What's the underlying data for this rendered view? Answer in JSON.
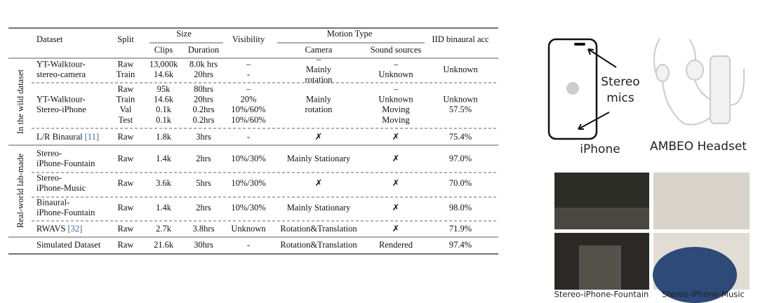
{
  "table": {
    "headers": {
      "dataset": "Dataset",
      "split": "Split",
      "size": "Size",
      "clips": "Clips",
      "duration": "Duration",
      "visibility": "Visibility",
      "motion": "Motion Type",
      "camera": "Camera",
      "sound": "Sound sources",
      "iid": "IID binaural acc"
    },
    "groups": [
      "In the wild dataset",
      "Real-world lab-made"
    ],
    "rows": [
      {
        "dataset": [
          "YT-Walktour-",
          "stereo-camera"
        ],
        "split": [
          "Raw",
          "Train"
        ],
        "clips": [
          "13,000k",
          "14.6k"
        ],
        "duration": [
          "8.0k hrs",
          "20hrs"
        ],
        "visibility": [
          "–",
          "-"
        ],
        "camera": [
          "–",
          "Mainly",
          "rotation"
        ],
        "sound": [
          "–",
          "Unknown"
        ],
        "iid": "Unknown"
      },
      {
        "dataset": [
          "YT-Walktour-",
          "Stereo-iPhone"
        ],
        "split": [
          "Raw",
          "Train",
          "Val",
          "Test"
        ],
        "clips": [
          "95k",
          "14.6k",
          "0.1k",
          "0.1k"
        ],
        "duration": [
          "80hrs",
          "20hrs",
          "0.2hrs",
          "0.2hrs"
        ],
        "visibility": [
          "–",
          "20%",
          "10%/60%",
          "10%/60%"
        ],
        "camera": [
          "Mainly",
          "rotation"
        ],
        "sound": [
          "–",
          "Unknown",
          "Moving",
          "Moving"
        ],
        "iid": [
          "Unknown",
          "57.5%"
        ]
      },
      {
        "dataset": {
          "name": "L/R Binaural",
          "ref": "[11]"
        },
        "split": "Raw",
        "clips": "1.8k",
        "duration": "3hrs",
        "visibility": "-",
        "camera": "✗",
        "sound": "✗",
        "iid": "75.4%"
      },
      {
        "dataset": [
          "Stereo-",
          "iPhone-Fountain"
        ],
        "split": "Raw",
        "clips": "1.4k",
        "duration": "2hrs",
        "visibility": "10%/30%",
        "camera": "Mainly Stationary",
        "sound": "✗",
        "iid": "97.0%"
      },
      {
        "dataset": [
          "Stereo-",
          "iPhone-Music"
        ],
        "split": "Raw",
        "clips": "3.6k",
        "duration": "5hrs",
        "visibility": "10%/30%",
        "camera": "✗",
        "sound": "✗",
        "iid": "70.0%"
      },
      {
        "dataset": [
          "Binaural-",
          "iPhone-Fountain"
        ],
        "split": "Raw",
        "clips": "1.4k",
        "duration": "2hrs",
        "visibility": "10%/30%",
        "camera": "Mainly Stationary",
        "sound": "✗",
        "iid": "98.0%"
      },
      {
        "dataset": {
          "name": "RWAVS",
          "ref": "[32]"
        },
        "split": "Raw",
        "clips": "2.7k",
        "duration": "3.8hrs",
        "visibility": "Unknown",
        "camera": "Rotation&Translation",
        "sound": "✗",
        "iid": "71.9%"
      },
      {
        "dataset": "Simulated Dataset",
        "split": "Raw",
        "clips": "21.6k",
        "duration": "30hrs",
        "visibility": "-",
        "camera": "Rotation&Translation",
        "sound": "Rendered",
        "iid": "97.4%"
      }
    ]
  },
  "figure": {
    "stereo_mics": [
      "Stereo",
      "mics"
    ],
    "iphone": "iPhone",
    "headset": "AMBEO Headset",
    "captions": [
      "Stereo-iPhone-Fountain",
      "Stereo-iPhone-Music"
    ]
  }
}
